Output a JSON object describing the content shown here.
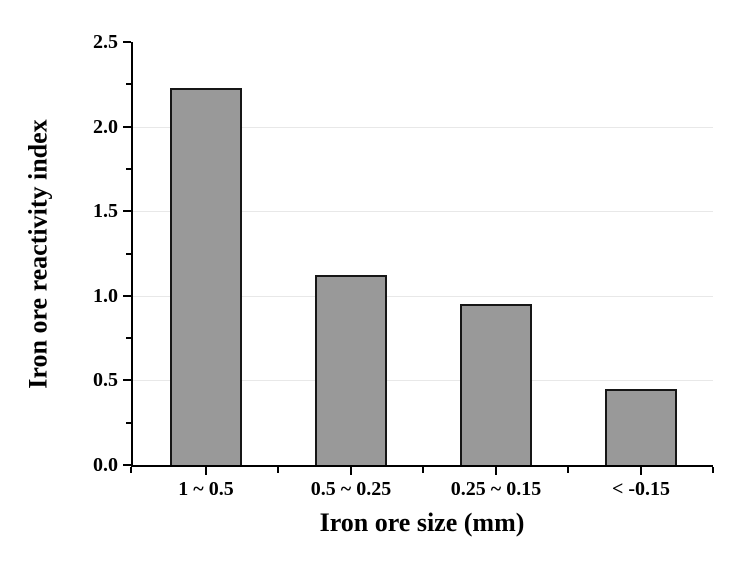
{
  "figure": {
    "background": "#ffffff",
    "text_color": "#000000"
  },
  "chart_data": {
    "type": "bar",
    "title": "",
    "categories": [
      "1 ~ 0.5",
      "0.5 ~ 0.25",
      "0.25 ~ 0.15",
      "< -0.15"
    ],
    "values": [
      2.23,
      1.12,
      0.95,
      0.45
    ],
    "xlabel": "Iron ore size (mm)",
    "ylabel": "Iron ore reactivity index",
    "ylim": [
      0,
      2.5
    ],
    "y_major_ticks": [
      0.0,
      0.5,
      1.0,
      1.5,
      2.0,
      2.5
    ],
    "y_tick_labels": [
      "0.0",
      "0.5",
      "1.0",
      "1.5",
      "2.0",
      "2.5"
    ],
    "y_minor_ticks": [
      0.25,
      0.75,
      1.25,
      1.75,
      2.25
    ],
    "gridlines": [
      0.5,
      1.0,
      1.5,
      2.0
    ],
    "grid": "horizontal-major-only",
    "legend": "none",
    "bar_color": "#999999",
    "bar_edge_color": "#161616",
    "grid_color": "#e8e8e8",
    "axis_color": "#000000"
  }
}
